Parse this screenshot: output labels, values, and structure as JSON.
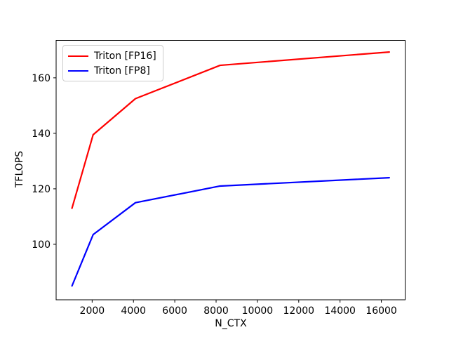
{
  "figure": {
    "background": "#ffffff"
  },
  "chart_data": {
    "type": "line",
    "title": "",
    "xlabel": "N_CTX",
    "ylabel": "TFLOPS",
    "x": [
      1024,
      2048,
      4096,
      8192,
      16384
    ],
    "series": [
      {
        "name": "Triton [FP16]",
        "color": "#ff0000",
        "values": [
          113,
          139.5,
          152.5,
          164.5,
          169.3
        ]
      },
      {
        "name": "Triton [FP8]",
        "color": "#0000ff",
        "values": [
          85,
          103.5,
          115,
          121,
          124
        ]
      }
    ],
    "xlim": [
      256,
      17152
    ],
    "ylim": [
      80,
      173.5
    ],
    "xticks": [
      2000,
      4000,
      6000,
      8000,
      10000,
      12000,
      14000,
      16000
    ],
    "yticks": [
      100,
      120,
      140,
      160
    ],
    "grid": false,
    "legend_position": "upper-left",
    "axis_color": "#000000",
    "line_width": 2.2
  }
}
